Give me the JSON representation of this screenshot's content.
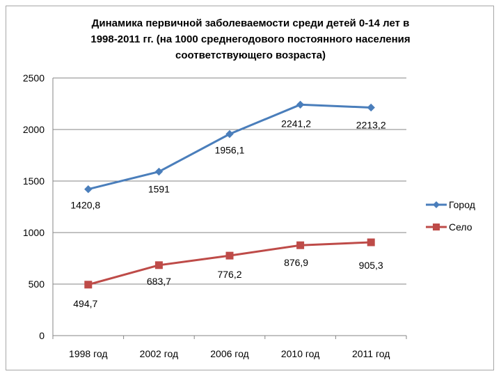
{
  "chart_data": {
    "type": "line",
    "title_lines": [
      "Динамика первичной заболеваемости среди детей 0-14 лет в",
      "1998-2011 гг. (на 1000 среднегодового постоянного населения",
      "соответствующего возраста)"
    ],
    "categories": [
      "1998 год",
      "2002 год",
      "2006 год",
      "2010 год",
      "2011 год"
    ],
    "ylim": [
      0,
      2500
    ],
    "yticks": [
      "0",
      "500",
      "1000",
      "1500",
      "2000",
      "2500"
    ],
    "ytick_values": [
      0,
      500,
      1000,
      1500,
      2000,
      2500
    ],
    "grid": true,
    "legend_position": "right",
    "series": [
      {
        "name": "Город",
        "color": "#4a7ebb",
        "marker": "diamond",
        "values": [
          1420.8,
          1591,
          1956.1,
          2241.2,
          2213.2
        ],
        "labels": [
          "1420,8",
          "1591",
          "1956,1",
          "2241,2",
          "2213,2"
        ]
      },
      {
        "name": "Село",
        "color": "#be4b48",
        "marker": "square",
        "values": [
          494.7,
          683.7,
          776.2,
          876.9,
          905.3
        ],
        "labels": [
          "494,7",
          "683,7",
          "776,2",
          "876,9",
          "905,3"
        ]
      }
    ]
  }
}
